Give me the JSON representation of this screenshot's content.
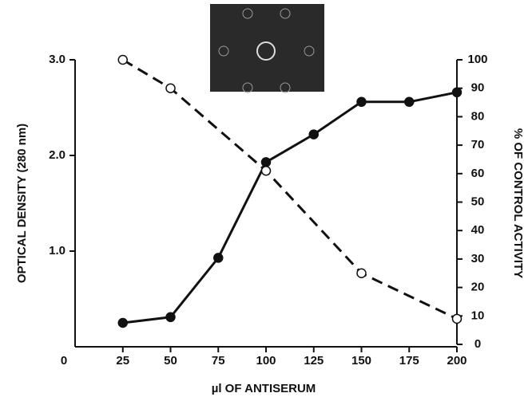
{
  "chart_data": {
    "type": "line",
    "x_label": "µl OF ANTISERUM",
    "y_label": "OPTICAL DENSITY (280 nm)",
    "y2_label": "% OF CONTROL ACTIVITY",
    "xlim": [
      0,
      200
    ],
    "xticks": [
      0,
      25,
      50,
      75,
      100,
      125,
      150,
      175,
      200
    ],
    "ylim": [
      0,
      3
    ],
    "yticks": [
      {
        "value": 1,
        "label": "1.0"
      },
      {
        "value": 2,
        "label": "2.0"
      },
      {
        "value": 3,
        "label": "3.0"
      }
    ],
    "y2lim": [
      0,
      100
    ],
    "y2ticks": [
      0,
      10,
      20,
      30,
      40,
      50,
      60,
      70,
      80,
      90,
      100
    ],
    "series": [
      {
        "color": "#111111",
        "marker": "filled",
        "dashed": false,
        "x": [
          25,
          50,
          75,
          100,
          125,
          150,
          175,
          200
        ],
        "values": [
          0.25,
          0.31,
          0.93,
          1.93,
          2.22,
          2.56,
          2.56,
          2.66
        ]
      },
      {
        "color": "#111111",
        "marker": "open",
        "dashed": true,
        "axis": "y2",
        "x": [
          25,
          50,
          100,
          150,
          200
        ],
        "values": [
          100,
          90,
          61,
          25,
          9
        ]
      }
    ]
  }
}
